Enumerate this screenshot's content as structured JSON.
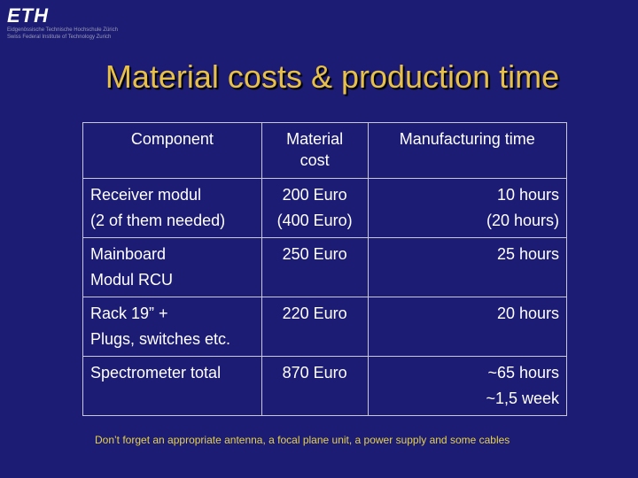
{
  "logo": {
    "mark": "ETH",
    "lines": [
      "Eidgenössische Technische Hochschule Zürich",
      "Swiss Federal Institute of Technology Zurich"
    ]
  },
  "title": "Material costs & production time",
  "table": {
    "header": [
      [
        "Component"
      ],
      [
        "Material",
        "cost"
      ],
      [
        "Manufacturing time"
      ]
    ],
    "rows": [
      [
        [
          "Receiver modul",
          "(2 of them needed)"
        ],
        [
          "200 Euro",
          "(400 Euro)"
        ],
        [
          "10 hours",
          "(20 hours)"
        ]
      ],
      [
        [
          "Mainboard",
          "Modul RCU"
        ],
        [
          "250 Euro"
        ],
        [
          "25 hours"
        ]
      ],
      [
        [
          "Rack 19” +",
          "Plugs, switches etc."
        ],
        [
          "220 Euro"
        ],
        [
          "20 hours"
        ]
      ],
      [
        [
          "Spectrometer total"
        ],
        [
          "870 Euro"
        ],
        [
          "~65 hours",
          "~1,5 week"
        ]
      ]
    ]
  },
  "note": "Don’t forget an appropriate antenna, a focal plane unit, a power supply and some cables"
}
